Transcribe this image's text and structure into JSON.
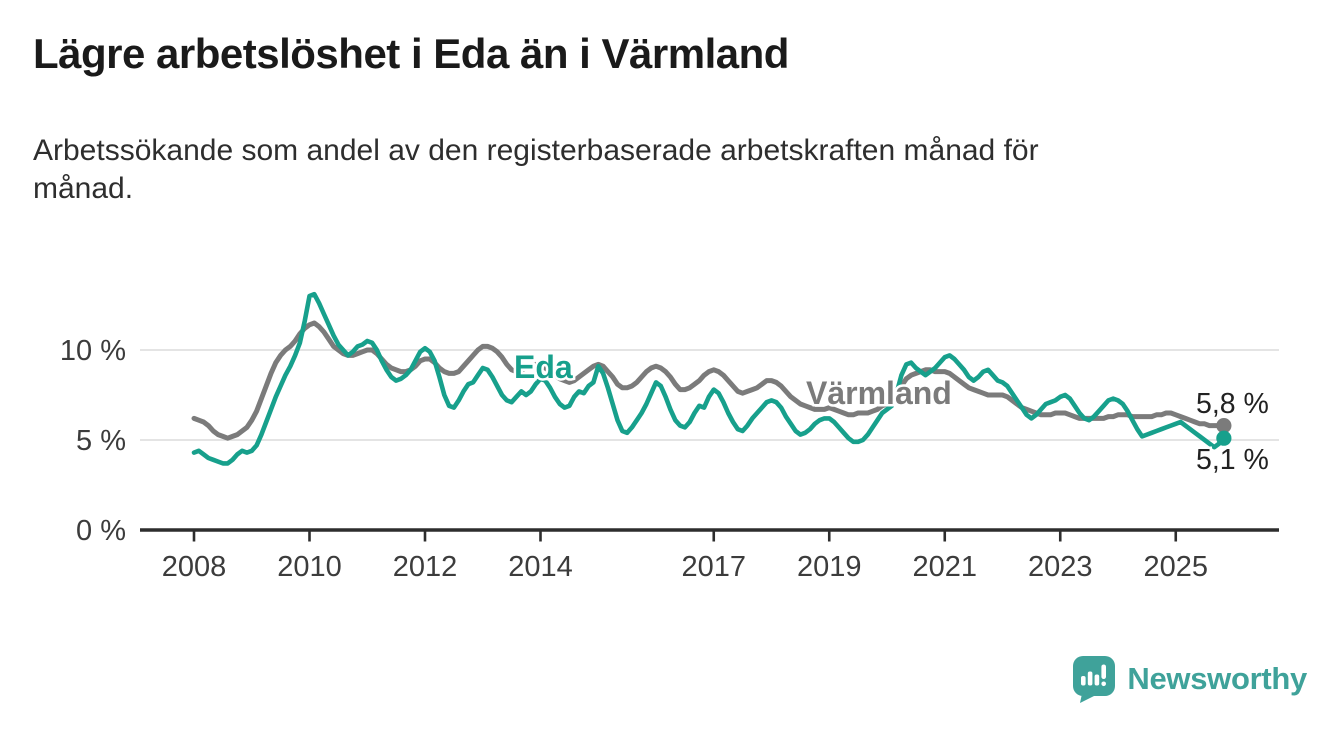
{
  "title": "Lägre arbetslöshet i Eda än i Värmland",
  "subtitle": "Arbetssökande som andel av den registerbaserade arbetskraften månad för månad.",
  "subtitle_lines": [
    "Arbetssökande som andel av den registerbaserade arbetskraften månad för",
    "månad."
  ],
  "branding": {
    "logo_text": "Newsworthy",
    "logo_icon": "bar-chart-speech-bubble-icon",
    "logo_color": "#3fa29a"
  },
  "chart_data": {
    "type": "line",
    "title": "Lägre arbetslöshet i Eda än i Värmland",
    "xlabel": "",
    "ylabel": "",
    "unit": "%",
    "grid": "horizontal",
    "legend_position": "inline-labels",
    "x_start_year": 2008,
    "x_start_month": 1,
    "x_frequency": "monthly",
    "xticks": [
      2008,
      2010,
      2012,
      2014,
      2017,
      2019,
      2021,
      2023,
      2025
    ],
    "yticks": [
      {
        "value": 0,
        "label": "0 %"
      },
      {
        "value": 5,
        "label": "5 %"
      },
      {
        "value": 10,
        "label": "10 %"
      }
    ],
    "ylim": [
      0,
      13.8
    ],
    "colors": {
      "eda": "#17a08c",
      "varmland": "#7b7b7b",
      "grid": "#dcdcdc",
      "axis": "#2d2d2d",
      "tick_text": "#3c3c3c",
      "end_label_text": "#222222"
    },
    "series": [
      {
        "name": "Värmland",
        "color": "#7b7b7b",
        "end_label": "5,8 %",
        "end_value": 5.8,
        "values": [
          6.2,
          6.1,
          6.0,
          5.8,
          5.5,
          5.3,
          5.2,
          5.1,
          5.2,
          5.3,
          5.5,
          5.7,
          6.1,
          6.6,
          7.3,
          8.0,
          8.7,
          9.3,
          9.7,
          10.0,
          10.2,
          10.5,
          10.9,
          11.2,
          11.4,
          11.5,
          11.3,
          11.0,
          10.6,
          10.2,
          10.0,
          9.8,
          9.7,
          9.7,
          9.8,
          9.9,
          10.0,
          10.0,
          9.8,
          9.5,
          9.2,
          9.0,
          8.9,
          8.8,
          8.8,
          8.9,
          9.1,
          9.4,
          9.5,
          9.5,
          9.3,
          9.0,
          8.8,
          8.7,
          8.7,
          8.8,
          9.1,
          9.4,
          9.7,
          10.0,
          10.2,
          10.2,
          10.1,
          9.9,
          9.6,
          9.2,
          8.9,
          8.8,
          8.9,
          9.0,
          9.1,
          9.2,
          9.1,
          9.0,
          8.8,
          8.6,
          8.4,
          8.3,
          8.2,
          8.3,
          8.5,
          8.7,
          8.9,
          9.1,
          9.2,
          9.1,
          8.8,
          8.5,
          8.1,
          7.9,
          7.9,
          8.0,
          8.2,
          8.5,
          8.8,
          9.0,
          9.1,
          9.0,
          8.8,
          8.5,
          8.1,
          7.8,
          7.8,
          7.9,
          8.1,
          8.3,
          8.6,
          8.8,
          8.9,
          8.8,
          8.6,
          8.3,
          8.0,
          7.7,
          7.6,
          7.7,
          7.8,
          7.9,
          8.1,
          8.3,
          8.3,
          8.2,
          8.0,
          7.7,
          7.4,
          7.2,
          7.0,
          6.9,
          6.8,
          6.7,
          6.7,
          6.7,
          6.8,
          6.7,
          6.6,
          6.5,
          6.4,
          6.4,
          6.5,
          6.5,
          6.5,
          6.6,
          6.7,
          6.9,
          7.0,
          7.1,
          7.4,
          8.0,
          8.4,
          8.6,
          8.7,
          8.8,
          8.9,
          8.9,
          8.8,
          8.8,
          8.8,
          8.7,
          8.5,
          8.3,
          8.1,
          7.9,
          7.8,
          7.7,
          7.6,
          7.5,
          7.5,
          7.5,
          7.5,
          7.4,
          7.2,
          7.0,
          6.8,
          6.7,
          6.6,
          6.5,
          6.4,
          6.4,
          6.4,
          6.5,
          6.5,
          6.5,
          6.4,
          6.3,
          6.2,
          6.2,
          6.2,
          6.2,
          6.2,
          6.2,
          6.3,
          6.3,
          6.4,
          6.4,
          6.4,
          6.3,
          6.3,
          6.3,
          6.3,
          6.3,
          6.4,
          6.4,
          6.5,
          6.5,
          6.4,
          6.3,
          6.2,
          6.1,
          6.0,
          5.9,
          5.9,
          5.8,
          5.8,
          5.8,
          5.8
        ]
      },
      {
        "name": "Eda",
        "color": "#17a08c",
        "end_label": "5,1 %",
        "end_value": 5.1,
        "values": [
          4.3,
          4.4,
          4.2,
          4.0,
          3.9,
          3.8,
          3.7,
          3.7,
          3.9,
          4.2,
          4.4,
          4.3,
          4.4,
          4.7,
          5.3,
          6.0,
          6.7,
          7.4,
          8.0,
          8.6,
          9.1,
          9.7,
          10.4,
          11.6,
          13.0,
          13.1,
          12.6,
          12.0,
          11.4,
          10.8,
          10.3,
          10.0,
          9.7,
          9.9,
          10.2,
          10.3,
          10.5,
          10.4,
          10.0,
          9.4,
          8.9,
          8.5,
          8.3,
          8.4,
          8.6,
          8.9,
          9.4,
          9.9,
          10.1,
          9.9,
          9.4,
          8.5,
          7.5,
          6.9,
          6.8,
          7.2,
          7.7,
          8.1,
          8.2,
          8.6,
          9.0,
          8.9,
          8.5,
          8.0,
          7.5,
          7.2,
          7.1,
          7.4,
          7.7,
          7.5,
          7.7,
          8.1,
          8.4,
          8.3,
          7.9,
          7.4,
          7.0,
          6.8,
          6.9,
          7.4,
          7.7,
          7.6,
          8.0,
          8.2,
          9.1,
          8.7,
          7.9,
          7.0,
          6.1,
          5.5,
          5.4,
          5.7,
          6.1,
          6.5,
          7.0,
          7.6,
          8.2,
          8.0,
          7.4,
          6.7,
          6.1,
          5.8,
          5.7,
          6.0,
          6.5,
          6.9,
          6.8,
          7.4,
          7.8,
          7.6,
          7.1,
          6.5,
          6.0,
          5.6,
          5.5,
          5.8,
          6.2,
          6.5,
          6.8,
          7.1,
          7.2,
          7.1,
          6.8,
          6.3,
          5.9,
          5.5,
          5.3,
          5.4,
          5.6,
          5.9,
          6.1,
          6.2,
          6.2,
          6.0,
          5.7,
          5.4,
          5.1,
          4.9,
          4.9,
          5.0,
          5.3,
          5.7,
          6.1,
          6.5,
          6.7,
          6.9,
          7.6,
          8.6,
          9.2,
          9.3,
          9.0,
          8.8,
          8.6,
          8.8,
          9.0,
          9.3,
          9.6,
          9.7,
          9.5,
          9.2,
          8.9,
          8.5,
          8.3,
          8.5,
          8.8,
          8.9,
          8.6,
          8.3,
          8.2,
          8.0,
          7.6,
          7.2,
          6.8,
          6.4,
          6.2,
          6.4,
          6.7,
          7.0,
          7.1,
          7.2,
          7.4,
          7.5,
          7.3,
          6.9,
          6.5,
          6.2,
          6.1,
          6.3,
          6.6,
          6.9,
          7.2,
          7.3,
          7.2,
          7.0,
          6.6,
          6.1,
          5.6,
          5.2,
          5.3,
          5.4,
          5.5,
          5.6,
          5.7,
          5.8,
          5.9,
          6.0,
          5.8,
          5.6,
          5.4,
          5.2,
          5.0,
          4.8,
          4.6,
          4.8,
          5.1
        ]
      }
    ]
  }
}
